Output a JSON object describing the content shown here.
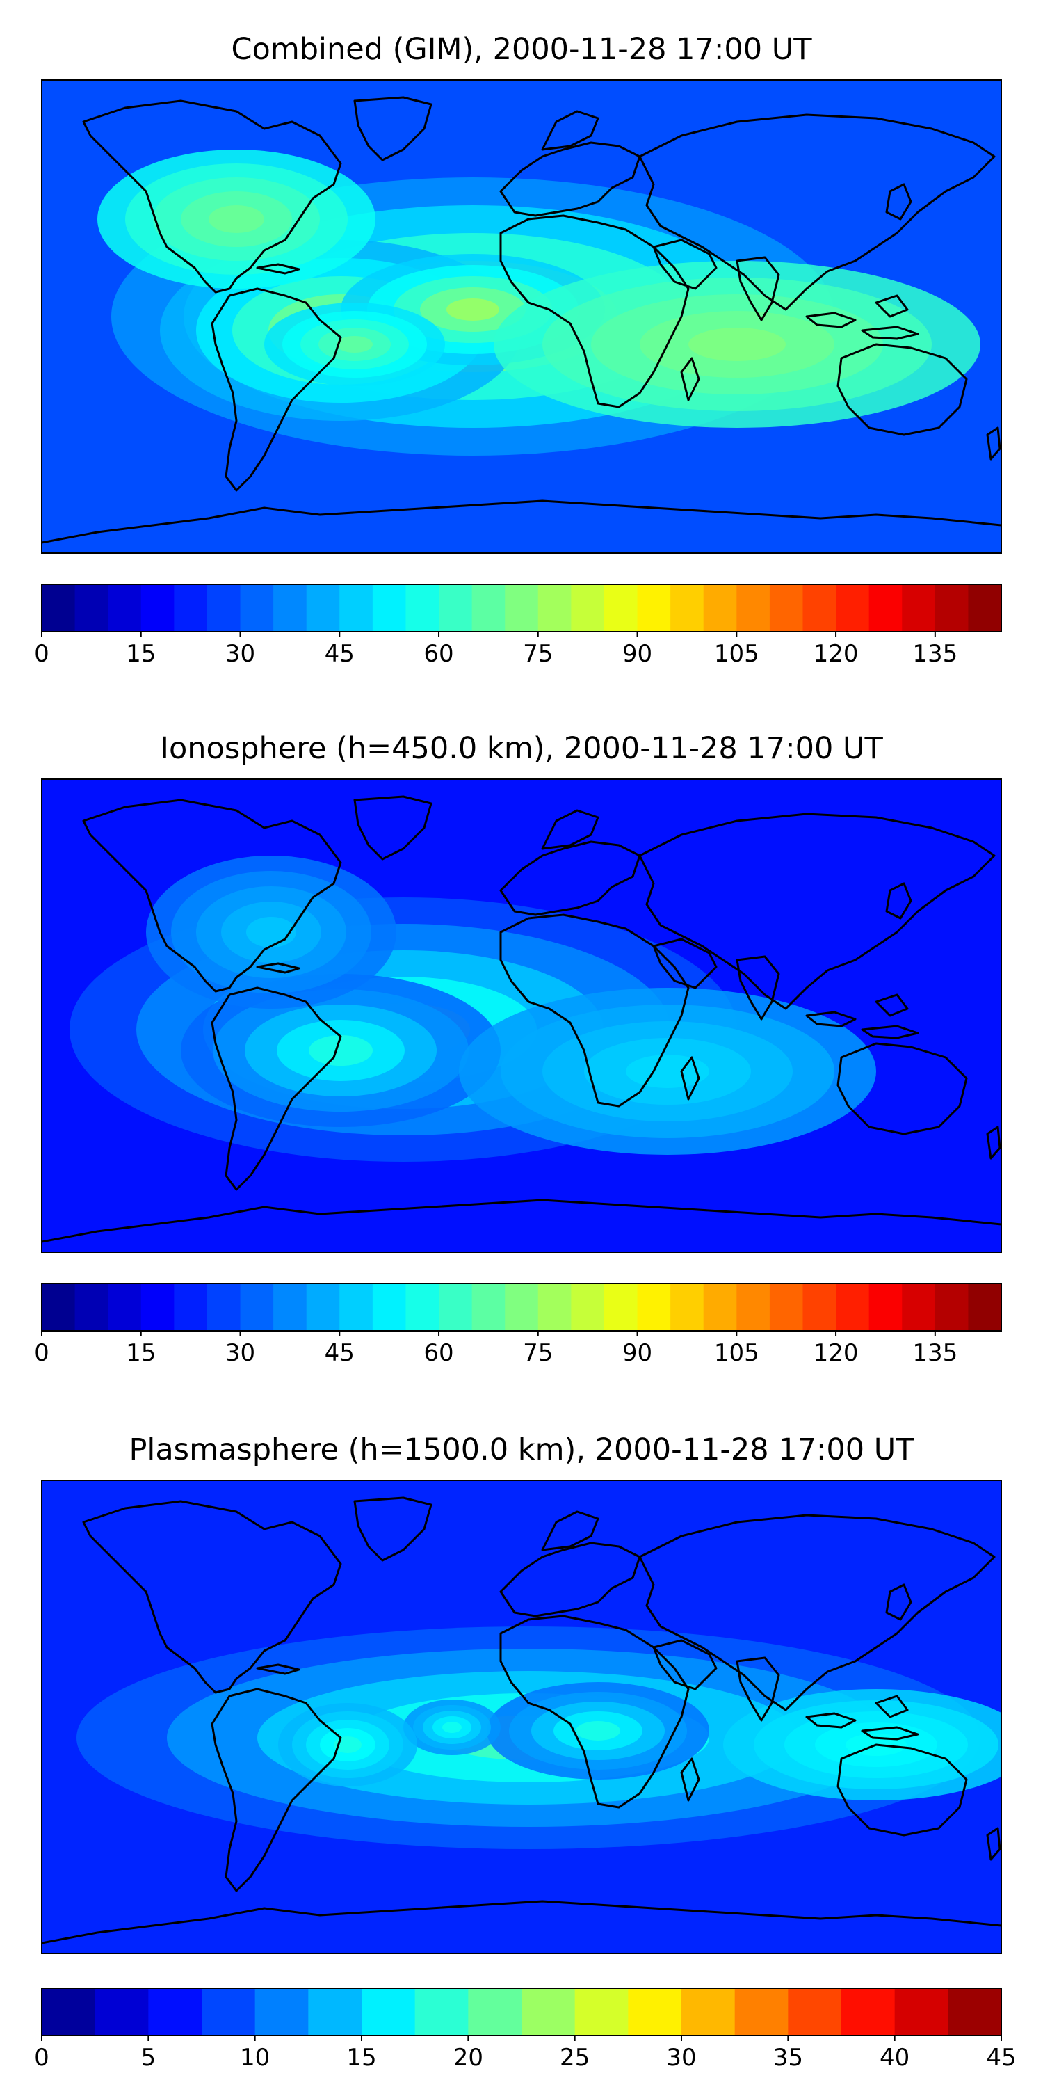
{
  "panels": [
    {
      "title": "Combined (GIM), 2000-11-28 17:00 UT",
      "colorbar": {
        "ticks": [
          "0",
          "15",
          "30",
          "45",
          "60",
          "75",
          "90",
          "105",
          "120",
          "135"
        ],
        "min": 0,
        "max": 145,
        "levels": 29
      },
      "field": "combined"
    },
    {
      "title": "Ionosphere  (h=450.0 km), 2000-11-28 17:00 UT",
      "colorbar": {
        "ticks": [
          "0",
          "15",
          "30",
          "45",
          "60",
          "75",
          "90",
          "105",
          "120",
          "135"
        ],
        "min": 0,
        "max": 145,
        "levels": 29
      },
      "field": "ionosphere"
    },
    {
      "title": "Plasmasphere (h=1500.0 km), 2000-11-28 17:00 UT",
      "colorbar": {
        "ticks": [
          "0",
          "5",
          "10",
          "15",
          "20",
          "25",
          "30",
          "35",
          "40",
          "45"
        ],
        "min": 0,
        "max": 45,
        "levels": 18
      },
      "field": "plasmasphere"
    }
  ],
  "colormap": "jet"
}
